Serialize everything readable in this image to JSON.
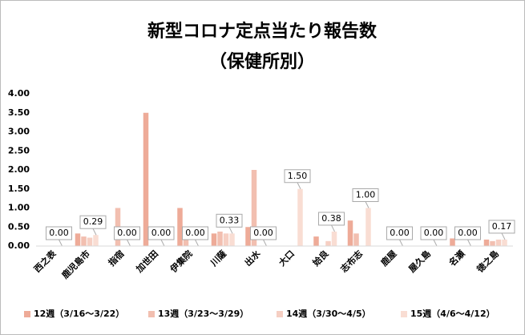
{
  "chart_data": {
    "type": "bar",
    "title": "新型コロナ定点当たり報告数",
    "subtitle": "（保健所別）",
    "categories": [
      "西之表",
      "鹿児島市",
      "指宿",
      "加世田",
      "伊集院",
      "川薩",
      "出水",
      "大口",
      "姶良",
      "志布志",
      "鹿屋",
      "屋久島",
      "名瀬",
      "徳之島"
    ],
    "series": [
      {
        "name": "12週（3/16～3/22）",
        "color": "#eeab98",
        "values": [
          0,
          0.33,
          0,
          3.5,
          1.0,
          0.33,
          0.5,
          0,
          0.25,
          0.67,
          0,
          0,
          0.2,
          0.17
        ]
      },
      {
        "name": "13週（3/23～3/29）",
        "color": "#f2bfb0",
        "values": [
          0,
          0.25,
          1.0,
          0,
          0.5,
          0.38,
          2.0,
          0,
          0,
          0.33,
          0,
          0,
          0,
          0.13
        ]
      },
      {
        "name": "14週（3/30～4/5）",
        "color": "#f6cfc3",
        "values": [
          0,
          0.22,
          0,
          0,
          0,
          0.33,
          0,
          0,
          0.13,
          0,
          0,
          0,
          0,
          0.17
        ]
      },
      {
        "name": "15週（4/6～4/12）",
        "color": "#f9ddd3",
        "values": [
          0,
          0.29,
          0,
          0,
          0,
          0.33,
          0,
          1.5,
          0.38,
          1.0,
          0,
          0,
          0,
          0.17
        ],
        "value_labels": [
          "0.00",
          "0.29",
          "0.00",
          "0.00",
          "0.00",
          "0.33",
          "0.00",
          "1.50",
          "0.38",
          "1.00",
          "0.00",
          "0.00",
          "0.00",
          "0.17"
        ]
      }
    ],
    "ylim": [
      0,
      4
    ],
    "yticks": [
      {
        "value": 0,
        "label": "0.00"
      },
      {
        "value": 0.5,
        "label": "0.50"
      },
      {
        "value": 1,
        "label": "1.00"
      },
      {
        "value": 1.5,
        "label": "1.50"
      },
      {
        "value": 2,
        "label": "2.00"
      },
      {
        "value": 2.5,
        "label": "2.50"
      },
      {
        "value": 3,
        "label": "3.00"
      },
      {
        "value": 3.5,
        "label": "3.50"
      },
      {
        "value": 4,
        "label": "4.00"
      }
    ],
    "grid": false,
    "legend": "bottom"
  }
}
